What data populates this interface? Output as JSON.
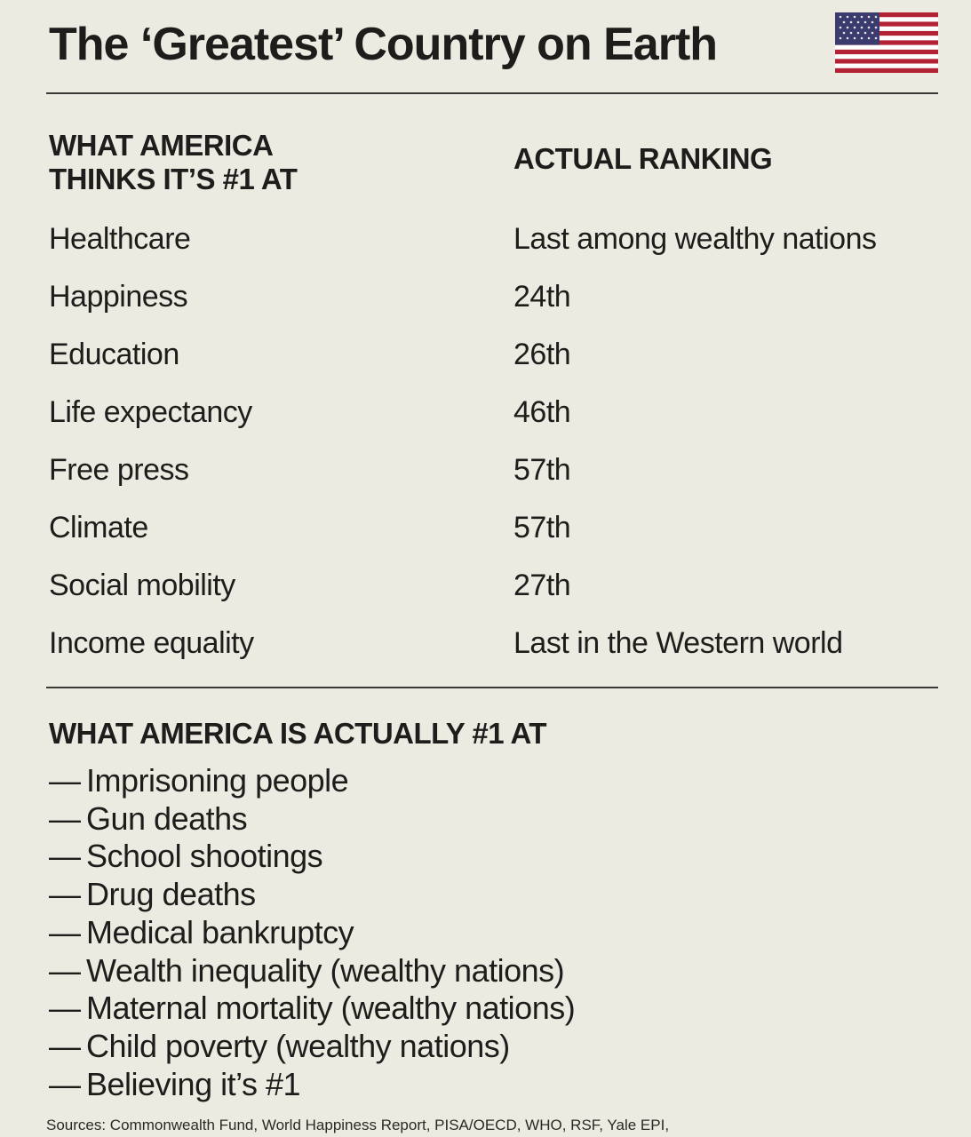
{
  "header": {
    "title": "The ‘Greatest’ Country on Earth",
    "flag_icon": "us-flag-icon"
  },
  "ranking_table": {
    "left_header_line1": "WHAT AMERICA",
    "left_header_line2": "THINKS IT’S #1 AT",
    "right_header": "ACTUAL RANKING",
    "rows": [
      {
        "category": "Healthcare",
        "ranking": "Last among wealthy nations"
      },
      {
        "category": "Happiness",
        "ranking": "24th"
      },
      {
        "category": "Education",
        "ranking": "26th"
      },
      {
        "category": "Life expectancy",
        "ranking": "46th"
      },
      {
        "category": "Free press",
        "ranking": "57th"
      },
      {
        "category": "Climate",
        "ranking": "57th"
      },
      {
        "category": "Social mobility",
        "ranking": "27th"
      },
      {
        "category": "Income equality",
        "ranking": "Last in the Western world"
      }
    ]
  },
  "actually_first": {
    "heading": "WHAT AMERICA IS ACTUALLY #1 AT",
    "dash": "—",
    "items": [
      "Imprisoning people",
      "Gun deaths",
      "School shootings",
      "Drug deaths",
      "Medical bankruptcy",
      "Wealth inequality (wealthy nations)",
      "Maternal mortality (wealthy nations)",
      "Child poverty (wealthy nations)",
      "Believing it’s #1"
    ]
  },
  "footer": {
    "sources": "Sources: Commonwealth Fund, World Happiness Report, PISA/OECD, WHO, RSF, Yale EPI,"
  },
  "colors": {
    "background": "#ecebe2",
    "text": "#1e1d1b",
    "flag_red": "#b22234",
    "flag_blue": "#3c3b6e"
  }
}
